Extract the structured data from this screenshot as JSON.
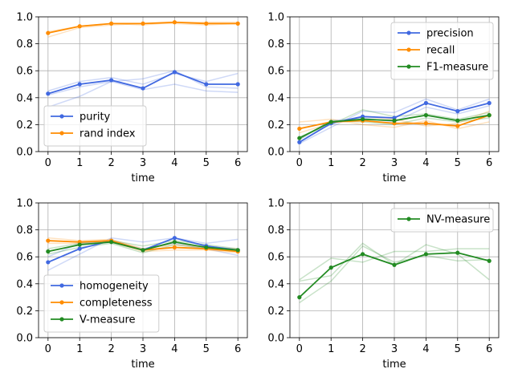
{
  "chart_data": [
    {
      "type": "line",
      "xlabel": "time",
      "ylabel": "",
      "x": [
        0,
        1,
        2,
        3,
        4,
        5,
        6
      ],
      "xlim": [
        -0.3,
        6.3
      ],
      "ylim": [
        0,
        1
      ],
      "xticks": [
        "0",
        "1",
        "2",
        "3",
        "4",
        "5",
        "6"
      ],
      "yticks": [
        "0.0",
        "0.2",
        "0.4",
        "0.6",
        "0.8",
        "1.0"
      ],
      "grid": true,
      "legend_position": "lower-left",
      "series": [
        {
          "name": "purity",
          "color": "#4169e1",
          "values": [
            0.43,
            0.5,
            0.53,
            0.47,
            0.59,
            0.5,
            0.5
          ]
        },
        {
          "name": "rand index",
          "color": "#ff8c00",
          "values": [
            0.88,
            0.93,
            0.95,
            0.95,
            0.96,
            0.95,
            0.95
          ]
        }
      ],
      "faint_runs": [
        {
          "color": "#4169e1",
          "values": [
            0.45,
            0.52,
            0.55,
            0.5,
            0.58,
            0.52,
            0.58
          ]
        },
        {
          "color": "#4169e1",
          "values": [
            0.33,
            0.41,
            0.52,
            0.54,
            0.6,
            0.48,
            0.47
          ]
        },
        {
          "color": "#4169e1",
          "values": [
            0.42,
            0.48,
            0.52,
            0.46,
            0.5,
            0.45,
            0.44
          ]
        },
        {
          "color": "#ff8c00",
          "values": [
            0.85,
            0.92,
            0.94,
            0.95,
            0.95,
            0.94,
            0.95
          ]
        },
        {
          "color": "#ff8c00",
          "values": [
            0.89,
            0.93,
            0.95,
            0.94,
            0.96,
            0.96,
            0.96
          ]
        }
      ]
    },
    {
      "type": "line",
      "xlabel": "time",
      "ylabel": "",
      "x": [
        0,
        1,
        2,
        3,
        4,
        5,
        6
      ],
      "xlim": [
        -0.3,
        6.3
      ],
      "ylim": [
        0,
        1
      ],
      "xticks": [
        "0",
        "1",
        "2",
        "3",
        "4",
        "5",
        "6"
      ],
      "yticks": [
        "0.0",
        "0.2",
        "0.4",
        "0.6",
        "0.8",
        "1.0"
      ],
      "grid": true,
      "legend_position": "upper-right",
      "series": [
        {
          "name": "precision",
          "color": "#4169e1",
          "values": [
            0.07,
            0.21,
            0.26,
            0.25,
            0.36,
            0.3,
            0.36
          ]
        },
        {
          "name": "recall",
          "color": "#ff8c00",
          "values": [
            0.17,
            0.22,
            0.23,
            0.21,
            0.21,
            0.19,
            0.27
          ]
        },
        {
          "name": "F1-measure",
          "color": "#228b22",
          "values": [
            0.1,
            0.22,
            0.24,
            0.23,
            0.27,
            0.23,
            0.27
          ]
        }
      ],
      "faint_runs": [
        {
          "color": "#4169e1",
          "values": [
            0.06,
            0.18,
            0.3,
            0.29,
            0.39,
            0.31,
            0.39
          ]
        },
        {
          "color": "#4169e1",
          "values": [
            0.09,
            0.23,
            0.25,
            0.22,
            0.33,
            0.28,
            0.34
          ]
        },
        {
          "color": "#ff8c00",
          "values": [
            0.22,
            0.24,
            0.2,
            0.18,
            0.23,
            0.17,
            0.22
          ]
        },
        {
          "color": "#ff8c00",
          "values": [
            0.14,
            0.21,
            0.26,
            0.24,
            0.19,
            0.21,
            0.3
          ]
        },
        {
          "color": "#228b22",
          "values": [
            0.11,
            0.2,
            0.31,
            0.26,
            0.28,
            0.24,
            0.29
          ]
        },
        {
          "color": "#228b22",
          "values": [
            0.09,
            0.23,
            0.22,
            0.2,
            0.25,
            0.22,
            0.25
          ]
        }
      ]
    },
    {
      "type": "line",
      "xlabel": "time",
      "ylabel": "",
      "x": [
        0,
        1,
        2,
        3,
        4,
        5,
        6
      ],
      "xlim": [
        -0.3,
        6.3
      ],
      "ylim": [
        0,
        1
      ],
      "xticks": [
        "0",
        "1",
        "2",
        "3",
        "4",
        "5",
        "6"
      ],
      "yticks": [
        "0.0",
        "0.2",
        "0.4",
        "0.6",
        "0.8",
        "1.0"
      ],
      "grid": true,
      "legend_position": "lower-left",
      "series": [
        {
          "name": "homogeneity",
          "color": "#4169e1",
          "values": [
            0.56,
            0.66,
            0.72,
            0.65,
            0.74,
            0.68,
            0.65
          ]
        },
        {
          "name": "completeness",
          "color": "#ff8c00",
          "values": [
            0.72,
            0.71,
            0.72,
            0.65,
            0.67,
            0.66,
            0.64
          ]
        },
        {
          "name": "V-measure",
          "color": "#228b22",
          "values": [
            0.64,
            0.69,
            0.71,
            0.65,
            0.71,
            0.67,
            0.65
          ]
        }
      ],
      "faint_runs": [
        {
          "color": "#4169e1",
          "values": [
            0.5,
            0.62,
            0.74,
            0.71,
            0.74,
            0.7,
            0.73
          ]
        },
        {
          "color": "#4169e1",
          "values": [
            0.6,
            0.7,
            0.71,
            0.66,
            0.7,
            0.66,
            0.61
          ]
        },
        {
          "color": "#ff8c00",
          "values": [
            0.74,
            0.72,
            0.73,
            0.66,
            0.69,
            0.67,
            0.66
          ]
        },
        {
          "color": "#ff8c00",
          "values": [
            0.7,
            0.7,
            0.71,
            0.64,
            0.65,
            0.65,
            0.63
          ]
        },
        {
          "color": "#228b22",
          "values": [
            0.66,
            0.7,
            0.72,
            0.68,
            0.72,
            0.69,
            0.66
          ]
        },
        {
          "color": "#228b22",
          "values": [
            0.62,
            0.67,
            0.7,
            0.63,
            0.69,
            0.66,
            0.64
          ]
        }
      ]
    },
    {
      "type": "line",
      "xlabel": "time",
      "ylabel": "",
      "x": [
        0,
        1,
        2,
        3,
        4,
        5,
        6
      ],
      "xlim": [
        -0.3,
        6.3
      ],
      "ylim": [
        0,
        1
      ],
      "xticks": [
        "0",
        "1",
        "2",
        "3",
        "4",
        "5",
        "6"
      ],
      "yticks": [
        "0.0",
        "0.2",
        "0.4",
        "0.6",
        "0.8",
        "1.0"
      ],
      "grid": true,
      "legend_position": "upper-right",
      "series": [
        {
          "name": "NV-measure",
          "color": "#228b22",
          "values": [
            0.3,
            0.52,
            0.62,
            0.54,
            0.62,
            0.63,
            0.57
          ]
        }
      ],
      "faint_runs": [
        {
          "color": "#228b22",
          "values": [
            0.42,
            0.46,
            0.7,
            0.54,
            0.69,
            0.62,
            0.43
          ]
        },
        {
          "color": "#228b22",
          "values": [
            0.26,
            0.42,
            0.68,
            0.56,
            0.61,
            0.57,
            0.58
          ]
        },
        {
          "color": "#228b22",
          "values": [
            0.43,
            0.59,
            0.56,
            0.64,
            0.64,
            0.66,
            0.66
          ]
        }
      ]
    }
  ]
}
